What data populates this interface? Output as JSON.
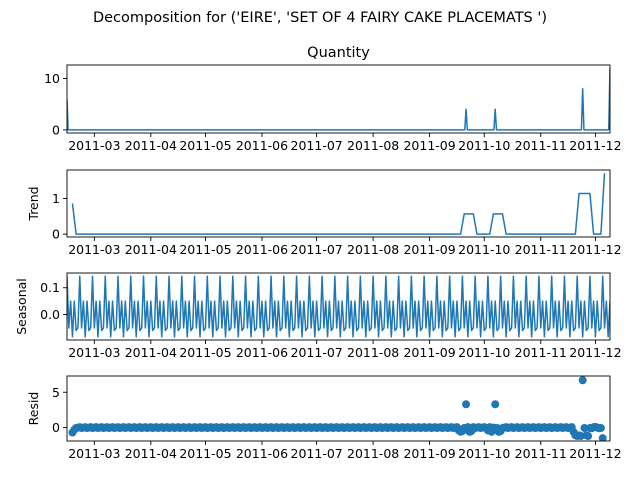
{
  "figure": {
    "suptitle": "Decomposition for ('EIRE', 'SET OF 4 FAIRY CAKE PLACEMATS ')"
  },
  "chart_data": [
    {
      "type": "line",
      "panel": "observed",
      "title": "Quantity",
      "ylabel": "",
      "x_range": [
        "2011-02-14",
        "2011-12-09"
      ],
      "x_ticks": [
        "2011-03",
        "2011-04",
        "2011-05",
        "2011-06",
        "2011-07",
        "2011-08",
        "2011-09",
        "2011-10",
        "2011-11",
        "2011-12"
      ],
      "ylim": [
        -0.6,
        12.6
      ],
      "y_ticks": [
        0,
        10
      ],
      "baseline": 0,
      "spikes": [
        {
          "x": "2011-02-14",
          "y": 6
        },
        {
          "x": "2011-09-21",
          "y": 4
        },
        {
          "x": "2011-10-07",
          "y": 4
        },
        {
          "x": "2011-11-24",
          "y": 8
        },
        {
          "x": "2011-12-09",
          "y": 12
        }
      ],
      "color": "#1f77b4"
    },
    {
      "type": "line",
      "panel": "trend",
      "ylabel": "Trend",
      "x_range": [
        "2011-02-14",
        "2011-12-09"
      ],
      "x_ticks": [
        "2011-03",
        "2011-04",
        "2011-05",
        "2011-06",
        "2011-07",
        "2011-08",
        "2011-09",
        "2011-10",
        "2011-11",
        "2011-12"
      ],
      "ylim": [
        -0.08,
        1.8
      ],
      "y_ticks": [
        0,
        1
      ],
      "points": [
        {
          "x": "2011-02-17",
          "y": 0.86
        },
        {
          "x": "2011-02-19",
          "y": 0
        },
        {
          "x": "2011-09-18",
          "y": 0
        },
        {
          "x": "2011-09-20",
          "y": 0.57
        },
        {
          "x": "2011-09-25",
          "y": 0.57
        },
        {
          "x": "2011-09-27",
          "y": 0
        },
        {
          "x": "2011-10-04",
          "y": 0
        },
        {
          "x": "2011-10-06",
          "y": 0.57
        },
        {
          "x": "2011-10-11",
          "y": 0.57
        },
        {
          "x": "2011-10-13",
          "y": 0
        },
        {
          "x": "2011-11-20",
          "y": 0
        },
        {
          "x": "2011-11-22",
          "y": 1.14
        },
        {
          "x": "2011-11-28",
          "y": 1.14
        },
        {
          "x": "2011-11-30",
          "y": 0
        },
        {
          "x": "2011-12-04",
          "y": 0
        },
        {
          "x": "2011-12-06",
          "y": 1.71
        }
      ],
      "color": "#1f77b4"
    },
    {
      "type": "line",
      "panel": "seasonal",
      "ylabel": "Seasonal",
      "x_range": [
        "2011-02-14",
        "2011-12-09"
      ],
      "x_ticks": [
        "2011-03",
        "2011-04",
        "2011-05",
        "2011-06",
        "2011-07",
        "2011-08",
        "2011-09",
        "2011-10",
        "2011-11",
        "2011-12"
      ],
      "ylim": [
        -0.095,
        0.155
      ],
      "y_ticks": [
        0.0,
        0.1
      ],
      "y_tick_labels": [
        "0.0",
        "0.1"
      ],
      "period_days": 7,
      "weekly_pattern": [
        0.143,
        -0.05,
        0.05,
        -0.083,
        0.05,
        -0.06,
        -0.05
      ],
      "color": "#1f77b4"
    },
    {
      "type": "scatter",
      "panel": "resid",
      "ylabel": "Resid",
      "x_range": [
        "2011-02-14",
        "2011-12-09"
      ],
      "x_ticks": [
        "2011-03",
        "2011-04",
        "2011-05",
        "2011-06",
        "2011-07",
        "2011-08",
        "2011-09",
        "2011-10",
        "2011-11",
        "2011-12"
      ],
      "ylim": [
        -1.9,
        7.3
      ],
      "y_ticks": [
        0,
        5
      ],
      "baseline_range": [
        "2011-02-17",
        "2011-12-05"
      ],
      "points": [
        {
          "x": "2011-02-17",
          "y": -0.7
        },
        {
          "x": "2011-02-18",
          "y": -0.3
        },
        {
          "x": "2011-09-17",
          "y": -0.4
        },
        {
          "x": "2011-09-18",
          "y": -0.6
        },
        {
          "x": "2011-09-19",
          "y": -0.5
        },
        {
          "x": "2011-09-21",
          "y": 3.3
        },
        {
          "x": "2011-09-23",
          "y": -0.6
        },
        {
          "x": "2011-09-24",
          "y": -0.5
        },
        {
          "x": "2011-10-03",
          "y": -0.4
        },
        {
          "x": "2011-10-05",
          "y": -0.6
        },
        {
          "x": "2011-10-07",
          "y": 3.3
        },
        {
          "x": "2011-10-09",
          "y": -0.6
        },
        {
          "x": "2011-10-10",
          "y": -0.5
        },
        {
          "x": "2011-11-19",
          "y": -0.6
        },
        {
          "x": "2011-11-20",
          "y": -1.1
        },
        {
          "x": "2011-11-21",
          "y": -1.2
        },
        {
          "x": "2011-11-22",
          "y": -1.1
        },
        {
          "x": "2011-11-23",
          "y": -1.2
        },
        {
          "x": "2011-11-24",
          "y": 6.7
        },
        {
          "x": "2011-11-26",
          "y": -1.1
        },
        {
          "x": "2011-11-27",
          "y": -1.2
        },
        {
          "x": "2011-11-29",
          "y": -0.1
        },
        {
          "x": "2011-12-01",
          "y": 0.1
        },
        {
          "x": "2011-12-03",
          "y": -0.1
        },
        {
          "x": "2011-12-05",
          "y": -1.5
        }
      ],
      "color": "#1f77b4"
    }
  ]
}
